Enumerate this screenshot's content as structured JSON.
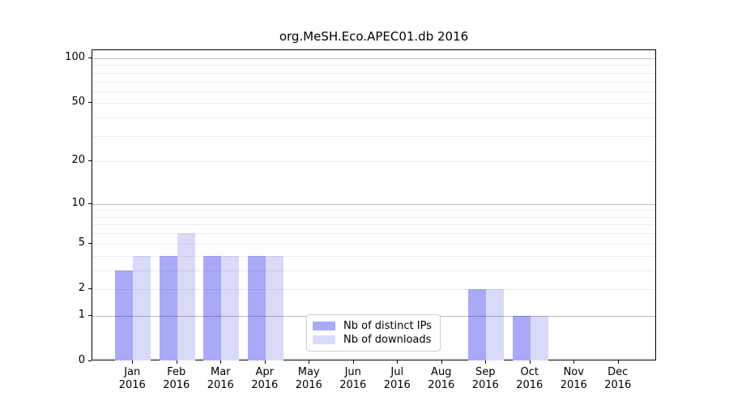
{
  "chart_data": {
    "type": "bar",
    "title": "org.MeSH.Eco.APEC01.db 2016",
    "year": "2016",
    "categories": [
      "Jan",
      "Feb",
      "Mar",
      "Apr",
      "May",
      "Jun",
      "Jul",
      "Aug",
      "Sep",
      "Oct",
      "Nov",
      "Dec"
    ],
    "series": [
      {
        "name": "Nb of distinct IPs",
        "color": "#a9a9f7",
        "values": [
          3,
          4,
          4,
          4,
          0,
          0,
          0,
          0,
          2,
          1,
          0,
          0
        ]
      },
      {
        "name": "Nb of downloads",
        "color": "#d9d9fa",
        "values": [
          4,
          6,
          4,
          4,
          0,
          0,
          0,
          0,
          2,
          1,
          0,
          0
        ]
      }
    ],
    "y_axis": {
      "scale": "log1p",
      "tick_labels": [
        "0",
        "1",
        "2",
        "5",
        "10",
        "20",
        "50",
        "100"
      ],
      "tick_values": [
        0,
        1,
        2,
        5,
        10,
        20,
        50,
        100
      ],
      "major_grid_values": [
        1,
        10,
        100
      ],
      "minor_grid_values": [
        2,
        3,
        4,
        5,
        6,
        7,
        8,
        9,
        20,
        30,
        40,
        50,
        60,
        70,
        80,
        90
      ],
      "max_value": 100,
      "ylim": [
        0,
        113
      ]
    },
    "x_axis": {
      "tick_labels_line2": "2016"
    },
    "legend": {
      "position": "lower-center",
      "entries": [
        "Nb of distinct IPs",
        "Nb of downloads"
      ]
    },
    "grid": true
  },
  "colors": {
    "bar_distinct_ips": "#a9a9f7",
    "bar_downloads": "#d9d9fa",
    "major_gridline": "rgba(0,0,0,0.25)",
    "minor_gridline": "rgba(0,0,0,0.08)",
    "axis_spine": "#000000",
    "legend_border": "#cccccc",
    "background": "#ffffff"
  }
}
